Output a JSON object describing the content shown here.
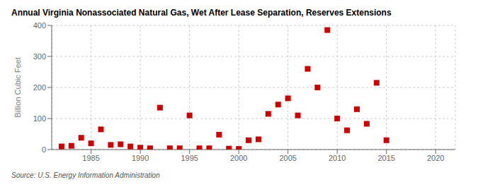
{
  "chart_data": {
    "type": "scatter",
    "title": "Annual Virginia Nonassociated Natural Gas, Wet After Lease Separation, Reserves Extensions",
    "ylabel": "Billion Cubic Feet",
    "source": "Source: U.S. Energy Information Administration",
    "color": "#cc0000",
    "marker": "square",
    "grid": true,
    "xlim": [
      1981,
      2022
    ],
    "ylim": [
      0,
      400
    ],
    "yticks": [
      0,
      100,
      200,
      300,
      400
    ],
    "xticks": [
      1985,
      1990,
      1995,
      2000,
      2005,
      2010,
      2015,
      2020
    ],
    "x": [
      1982,
      1983,
      1984,
      1985,
      1986,
      1987,
      1988,
      1989,
      1990,
      1991,
      1992,
      1993,
      1994,
      1995,
      1996,
      1997,
      1998,
      1999,
      2000,
      2001,
      2002,
      2003,
      2004,
      2005,
      2006,
      2007,
      2008,
      2009,
      2010,
      2011,
      2012,
      2013,
      2014,
      2015
    ],
    "values": [
      10,
      12,
      38,
      20,
      65,
      15,
      17,
      10,
      6,
      4,
      135,
      4,
      4,
      110,
      4,
      4,
      48,
      3,
      2,
      30,
      33,
      115,
      145,
      165,
      110,
      260,
      200,
      385,
      100,
      62,
      130,
      83,
      215,
      30
    ]
  }
}
